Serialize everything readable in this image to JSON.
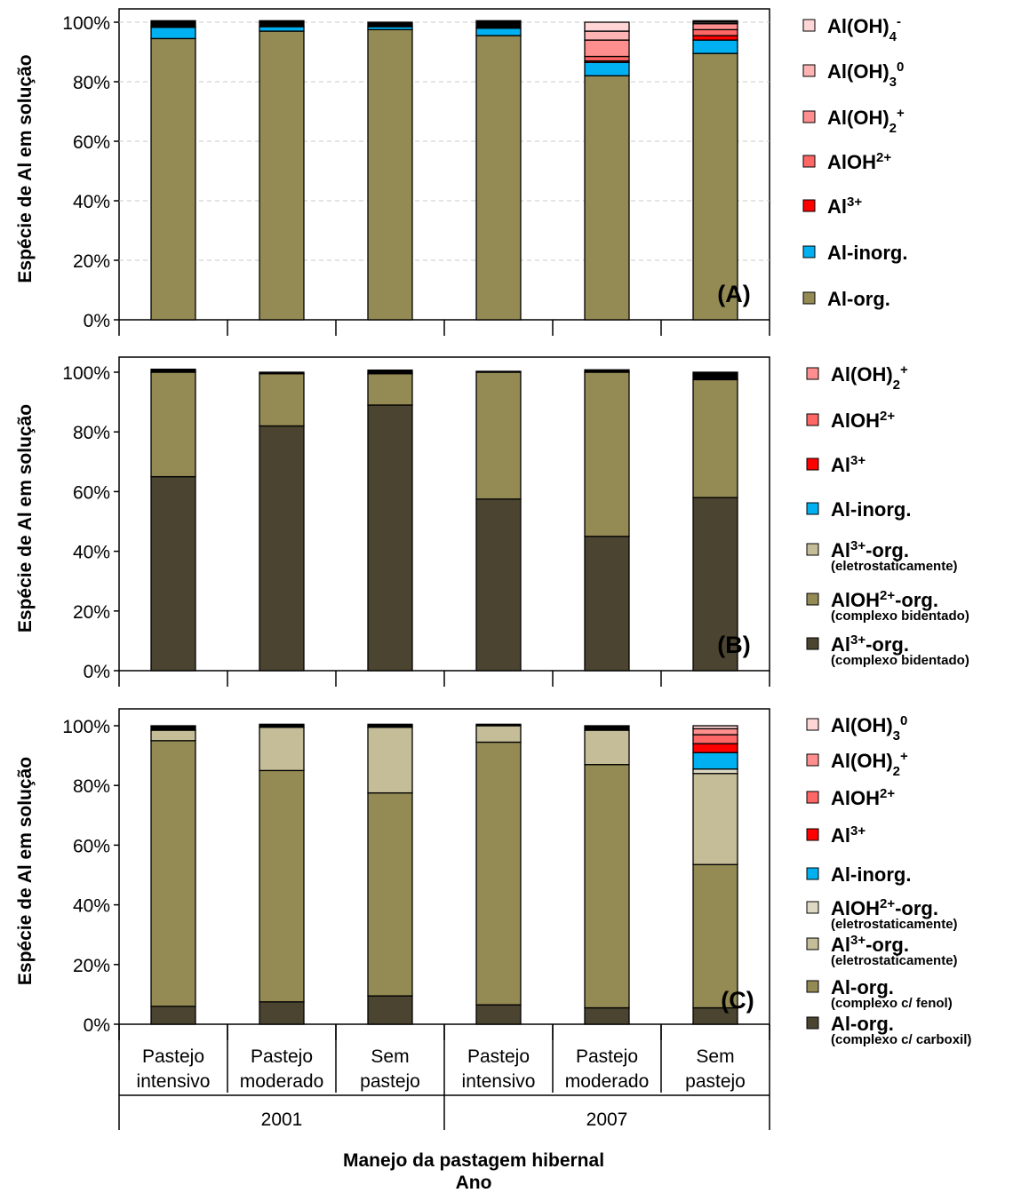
{
  "colors": {
    "dark_olive": "#4a4430",
    "olive": "#948a54",
    "tan": "#c4bd97",
    "light_tan": "#ddd9c3",
    "blue": "#00b0f0",
    "red": "#ff0000",
    "salmon1": "#ff6666",
    "salmon2": "#ff8e8e",
    "salmon3": "#ffb3b3",
    "pink": "#ffd5d5",
    "black": "#000000"
  },
  "chart_data": [
    {
      "type": "bar",
      "stacked": true,
      "panel": "(A)",
      "ylabel": "Espécie de Al em solução",
      "y_ticks": [
        "0%",
        "20%",
        "40%",
        "60%",
        "80%",
        "100%"
      ],
      "ylim": [
        0,
        100
      ],
      "grid": true,
      "legend_position": "right",
      "categories": [
        "Pastejo intensivo",
        "Pastejo moderado",
        "Sem pastejo",
        "Pastejo intensivo",
        "Pastejo moderado",
        "Sem pastejo"
      ],
      "series": [
        {
          "name": "Al-org.",
          "color": "olive",
          "values": [
            94.5,
            97.0,
            97.5,
            95.5,
            82.0,
            89.5
          ]
        },
        {
          "name": "Al-inorg.",
          "color": "blue",
          "values": [
            3.8,
            1.5,
            1.0,
            2.5,
            4.5,
            4.5
          ]
        },
        {
          "name": "Al³⁺",
          "color": "red",
          "values": [
            0.0,
            0.0,
            0.0,
            0.0,
            0.5,
            1.5
          ]
        },
        {
          "name": "AlOH²⁺",
          "color": "salmon1",
          "values": [
            0.0,
            0.0,
            0.0,
            0.0,
            1.5,
            2.0
          ]
        },
        {
          "name": "Al(OH)₂⁺",
          "color": "salmon2",
          "values": [
            0.0,
            0.0,
            0.0,
            0.0,
            5.5,
            2.0
          ]
        },
        {
          "name": "Al(OH)₃⁰",
          "color": "salmon3",
          "values": [
            0.0,
            0.0,
            0.0,
            0.0,
            3.0,
            0.5
          ]
        },
        {
          "name": "Al(OH)₄⁻",
          "color": "pink",
          "values": [
            0.0,
            0.0,
            0.0,
            0.0,
            3.0,
            0.0
          ]
        },
        {
          "name": "",
          "color": "black",
          "values": [
            2.2,
            2.0,
            1.5,
            2.5,
            0.0,
            0.5
          ]
        }
      ]
    },
    {
      "type": "bar",
      "stacked": true,
      "panel": "(B)",
      "ylabel": "Espécie de Al em solução",
      "y_ticks": [
        "0%",
        "20%",
        "40%",
        "60%",
        "80%",
        "100%"
      ],
      "ylim": [
        0,
        100
      ],
      "grid": false,
      "legend_position": "right",
      "categories": [
        "Pastejo intensivo",
        "Pastejo moderado",
        "Sem pastejo",
        "Pastejo intensivo",
        "Pastejo moderado",
        "Sem pastejo"
      ],
      "series": [
        {
          "name": "Al³⁺-org.",
          "sub": "(complexo bidentado)",
          "color": "dark_olive",
          "values": [
            65.0,
            82.0,
            89.0,
            57.5,
            45.0,
            58.0
          ]
        },
        {
          "name": "AlOH²⁺-org.",
          "sub": "(complexo bidentado)",
          "color": "olive",
          "values": [
            35.0,
            17.5,
            10.5,
            42.5,
            55.0,
            39.5
          ]
        },
        {
          "name": "Al³⁺-org.",
          "sub": "(eletrostaticamente)",
          "color": "tan",
          "values": [
            0.0,
            0.0,
            0.0,
            0.0,
            0.0,
            0.0
          ]
        },
        {
          "name": "Al-inorg.",
          "color": "blue",
          "values": [
            0.0,
            0.0,
            0.0,
            0.0,
            0.0,
            0.0
          ]
        },
        {
          "name": "Al³⁺",
          "color": "red",
          "values": [
            0.0,
            0.0,
            0.0,
            0.0,
            0.0,
            0.0
          ]
        },
        {
          "name": "AlOH²⁺",
          "color": "salmon1",
          "values": [
            0.0,
            0.0,
            0.0,
            0.0,
            0.0,
            0.0
          ]
        },
        {
          "name": "Al(OH)₂⁺",
          "color": "salmon2",
          "values": [
            0.0,
            0.0,
            0.0,
            0.0,
            0.0,
            0.0
          ]
        },
        {
          "name": "",
          "color": "black",
          "values": [
            1.0,
            0.5,
            1.2,
            0.3,
            0.8,
            2.5
          ]
        }
      ]
    },
    {
      "type": "bar",
      "stacked": true,
      "panel": "(C)",
      "ylabel": "Espécie de Al em solução",
      "y_ticks": [
        "0%",
        "20%",
        "40%",
        "60%",
        "80%",
        "100%"
      ],
      "ylim": [
        0,
        100
      ],
      "grid": false,
      "legend_position": "right",
      "categories": [
        "Pastejo intensivo",
        "Pastejo moderado",
        "Sem pastejo",
        "Pastejo intensivo",
        "Pastejo moderado",
        "Sem pastejo"
      ],
      "series": [
        {
          "name": "Al-org.",
          "sub": "(complexo c/ carboxil)",
          "color": "dark_olive",
          "values": [
            6.0,
            7.5,
            9.5,
            6.5,
            5.5,
            5.5
          ]
        },
        {
          "name": "Al-org.",
          "sub": "(complexo c/ fenol)",
          "color": "olive",
          "values": [
            89.0,
            77.5,
            68.0,
            88.0,
            81.5,
            48.0
          ]
        },
        {
          "name": "Al³⁺-org.",
          "sub": "(eletrostaticamente)",
          "color": "tan",
          "values": [
            3.5,
            14.5,
            22.0,
            5.5,
            11.5,
            30.5
          ]
        },
        {
          "name": "AlOH²⁺-org.",
          "sub": "(eletrostaticamente)",
          "color": "light_tan",
          "values": [
            0.0,
            0.0,
            0.0,
            0.0,
            0.0,
            1.5
          ]
        },
        {
          "name": "Al-inorg.",
          "color": "blue",
          "values": [
            0.0,
            0.0,
            0.0,
            0.0,
            0.0,
            5.5
          ]
        },
        {
          "name": "Al³⁺",
          "color": "red",
          "values": [
            0.0,
            0.0,
            0.0,
            0.0,
            0.0,
            3.0
          ]
        },
        {
          "name": "AlOH²⁺",
          "color": "salmon1",
          "values": [
            0.0,
            0.0,
            0.0,
            0.0,
            0.0,
            3.0
          ]
        },
        {
          "name": "Al(OH)₂⁺",
          "color": "salmon2",
          "values": [
            0.0,
            0.0,
            0.0,
            0.0,
            0.0,
            2.0
          ]
        },
        {
          "name": "Al(OH)₃⁰",
          "color": "pink",
          "values": [
            0.0,
            0.0,
            0.0,
            0.0,
            0.0,
            1.0
          ]
        },
        {
          "name": "",
          "color": "black",
          "values": [
            1.5,
            1.0,
            1.0,
            0.5,
            1.5,
            0.0
          ]
        }
      ]
    }
  ],
  "x_axis": {
    "groups": [
      {
        "label": "2001",
        "categories": [
          {
            "line1": "Pastejo",
            "line2": "intensivo"
          },
          {
            "line1": "Pastejo",
            "line2": "moderado"
          },
          {
            "line1": "Sem",
            "line2": "pastejo"
          }
        ]
      },
      {
        "label": "2007",
        "categories": [
          {
            "line1": "Pastejo",
            "line2": "intensivo"
          },
          {
            "line1": "Pastejo",
            "line2": "moderado"
          },
          {
            "line1": "Sem",
            "line2": "pastejo"
          }
        ]
      }
    ],
    "title_line1": "Manejo da pastagem  hibernal",
    "title_line2": "Ano"
  },
  "legends": [
    [
      {
        "html": "Al(OH)<tspan baseline-shift='sub' font-size='15'>4</tspan><tspan baseline-shift='super' font-size='15'>-</tspan>",
        "color": "pink"
      },
      {
        "html": "Al(OH)<tspan baseline-shift='sub' font-size='15'>3</tspan><tspan baseline-shift='super' font-size='15'>0</tspan>",
        "color": "salmon3"
      },
      {
        "html": "Al(OH)<tspan baseline-shift='sub' font-size='15'>2</tspan><tspan baseline-shift='super' font-size='15'>+</tspan>",
        "color": "salmon2"
      },
      {
        "html": "AlOH<tspan baseline-shift='super' font-size='15'>2+</tspan>",
        "color": "salmon1"
      },
      {
        "html": "Al<tspan baseline-shift='super' font-size='15'>3+</tspan>",
        "color": "red"
      },
      {
        "html": "Al-inorg.",
        "color": "blue"
      },
      {
        "html": "Al-org.",
        "color": "olive"
      }
    ],
    [
      {
        "html": "Al(OH)<tspan baseline-shift='sub' font-size='15'>2</tspan><tspan baseline-shift='super' font-size='15'>+</tspan>",
        "color": "salmon2"
      },
      {
        "html": "AlOH<tspan baseline-shift='super' font-size='15'>2+</tspan>",
        "color": "salmon1"
      },
      {
        "html": "Al<tspan baseline-shift='super' font-size='15'>3+</tspan>",
        "color": "red"
      },
      {
        "html": "Al-inorg.",
        "color": "blue"
      },
      {
        "html": "Al<tspan baseline-shift='super' font-size='15'>3+</tspan>-org.",
        "sub": "(eletrostaticamente)",
        "color": "tan"
      },
      {
        "html": "AlOH<tspan baseline-shift='super' font-size='15'>2+</tspan>-org.",
        "sub": "(complexo bidentado)",
        "color": "olive"
      },
      {
        "html": "Al<tspan baseline-shift='super' font-size='15'>3+</tspan>-org.",
        "sub": "(complexo bidentado)",
        "color": "dark_olive"
      }
    ],
    [
      {
        "html": "Al(OH)<tspan baseline-shift='sub' font-size='15'>3</tspan><tspan baseline-shift='super' font-size='15'>0</tspan>",
        "color": "pink"
      },
      {
        "html": "Al(OH)<tspan baseline-shift='sub' font-size='15'>2</tspan><tspan baseline-shift='super' font-size='15'>+</tspan>",
        "color": "salmon2"
      },
      {
        "html": "AlOH<tspan baseline-shift='super' font-size='15'>2+</tspan>",
        "color": "salmon1"
      },
      {
        "html": "Al<tspan baseline-shift='super' font-size='15'>3+</tspan>",
        "color": "red"
      },
      {
        "html": "Al-inorg.",
        "color": "blue"
      },
      {
        "html": "AlOH<tspan baseline-shift='super' font-size='15'>2+</tspan>-org.",
        "sub": "(eletrostaticamente)",
        "color": "light_tan"
      },
      {
        "html": "Al<tspan baseline-shift='super' font-size='15'>3+</tspan>-org.",
        "sub": "(eletrostaticamente)",
        "color": "tan"
      },
      {
        "html": "Al-org.",
        "sub": "(complexo c/ fenol)",
        "color": "olive"
      },
      {
        "html": "Al-org.",
        "sub": "(complexo c/ carboxil)",
        "color": "dark_olive"
      }
    ]
  ]
}
